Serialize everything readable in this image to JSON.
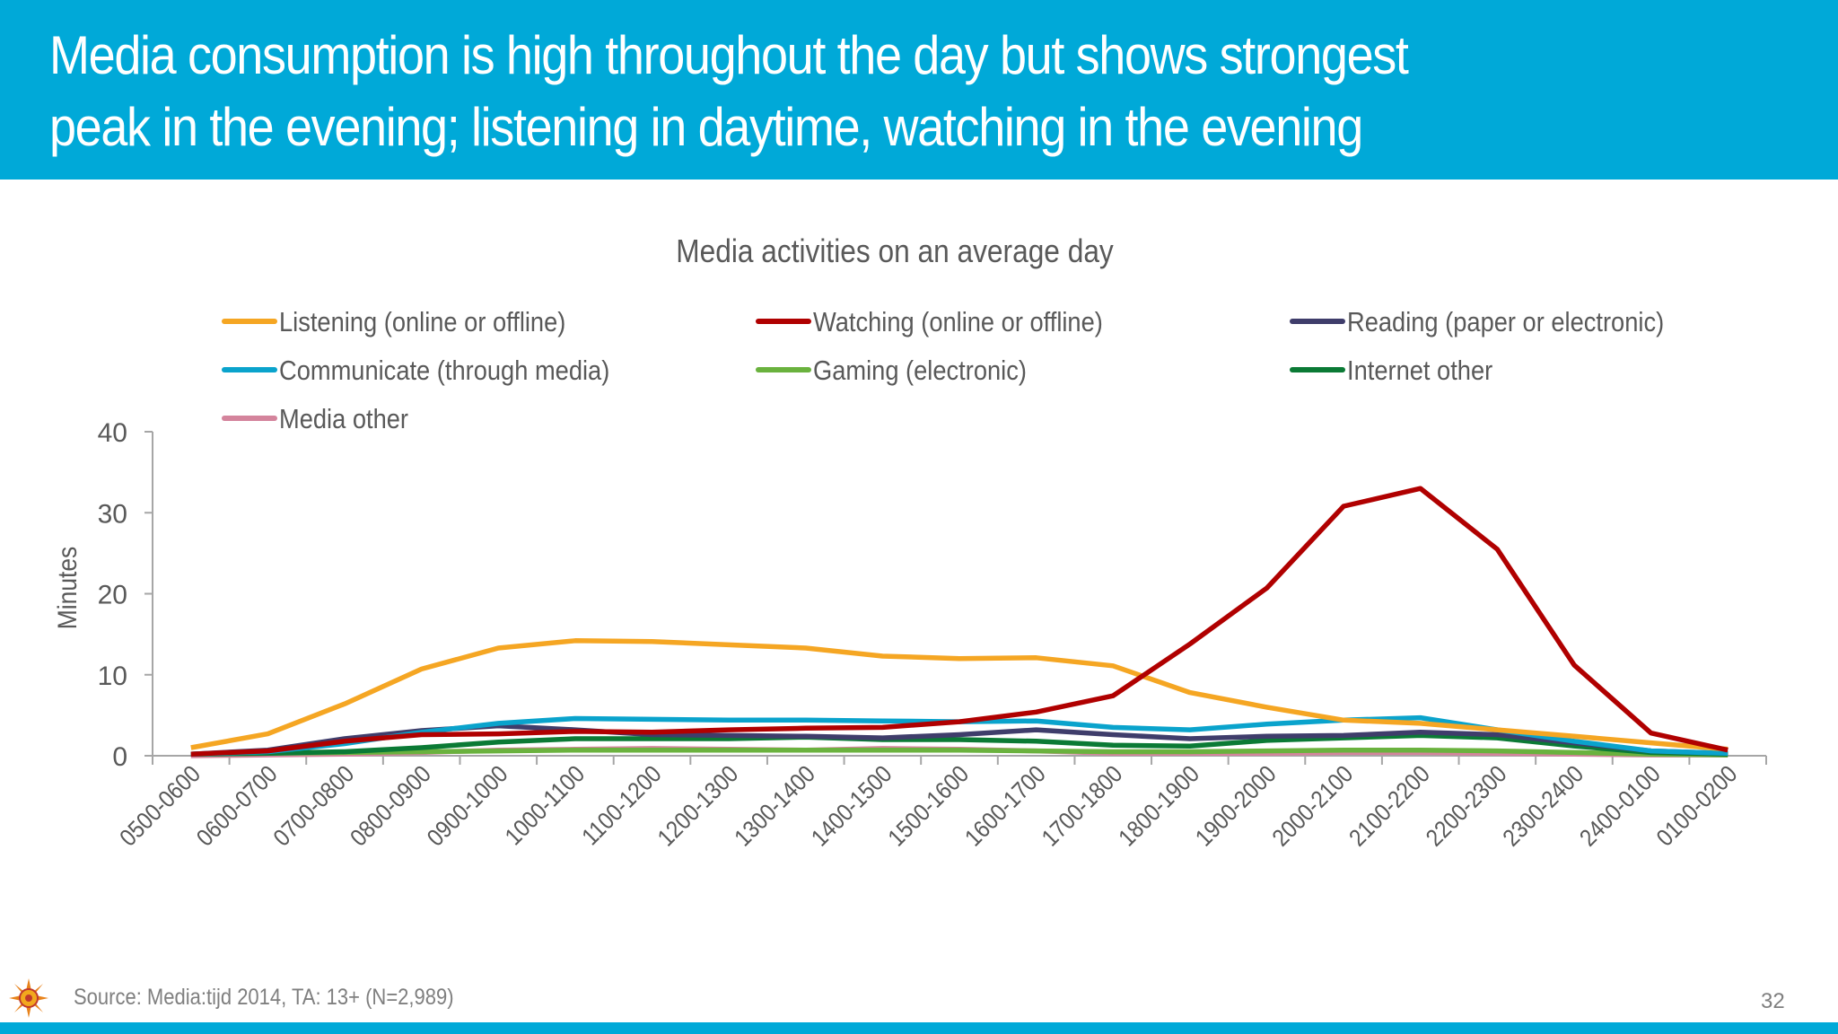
{
  "slide": {
    "title_line1": "Media consumption is high throughout the day but shows strongest",
    "title_line2": "peak in the evening; listening in daytime, watching in the evening",
    "source": "Source: Media:tijd 2014, TA: 13+ (N=2,989)",
    "page_number": "32"
  },
  "chart_data": {
    "type": "line",
    "title": "Media activities on an average day",
    "ylabel": "Minutes",
    "xlabel": "",
    "ylim": [
      0,
      40
    ],
    "yticks": [
      0,
      10,
      20,
      30,
      40
    ],
    "grid": false,
    "legend_position": "top",
    "categories": [
      "0500-0600",
      "0600-0700",
      "0700-0800",
      "0800-0900",
      "0900-1000",
      "1000-1100",
      "1100-1200",
      "1200-1300",
      "1300-1400",
      "1400-1500",
      "1500-1600",
      "1600-1700",
      "1700-1800",
      "1800-1900",
      "1900-2000",
      "2000-2100",
      "2100-2200",
      "2200-2300",
      "2300-2400",
      "2400-0100",
      "0100-0200"
    ],
    "series": [
      {
        "name": "Listening (online or offline)",
        "color": "#f5a623",
        "values": [
          1.0,
          2.7,
          6.4,
          10.7,
          13.3,
          14.2,
          14.1,
          13.7,
          13.3,
          12.3,
          12.0,
          12.1,
          11.1,
          7.8,
          6.0,
          4.4,
          4.0,
          3.2,
          2.4,
          1.6,
          0.8
        ]
      },
      {
        "name": "Watching (online or offline)",
        "color": "#b00000",
        "values": [
          0.2,
          0.6,
          1.8,
          2.6,
          2.7,
          3.0,
          2.9,
          3.2,
          3.4,
          3.5,
          4.2,
          5.4,
          7.4,
          13.8,
          20.7,
          30.8,
          33.0,
          25.5,
          11.2,
          2.8,
          0.7
        ]
      },
      {
        "name": "Reading (paper or electronic)",
        "color": "#3f3d6b",
        "values": [
          0.2,
          0.7,
          2.1,
          3.1,
          3.7,
          3.2,
          2.6,
          2.5,
          2.4,
          2.2,
          2.6,
          3.2,
          2.6,
          2.1,
          2.4,
          2.5,
          2.9,
          2.6,
          1.6,
          0.6,
          0.3
        ]
      },
      {
        "name": "Communicate (through media)",
        "color": "#0aa3cc",
        "values": [
          0.2,
          0.5,
          1.5,
          2.9,
          4.0,
          4.6,
          4.5,
          4.4,
          4.4,
          4.3,
          4.2,
          4.3,
          3.5,
          3.2,
          3.9,
          4.4,
          4.7,
          3.2,
          1.8,
          0.6,
          0.3
        ]
      },
      {
        "name": "Gaming (electronic)",
        "color": "#6ab23e",
        "values": [
          0.2,
          0.3,
          0.4,
          0.5,
          0.6,
          0.7,
          0.7,
          0.7,
          0.7,
          0.7,
          0.7,
          0.6,
          0.5,
          0.5,
          0.6,
          0.7,
          0.7,
          0.6,
          0.4,
          0.2,
          0.1
        ]
      },
      {
        "name": "Internet other",
        "color": "#0b7a35",
        "values": [
          0.2,
          0.3,
          0.5,
          1.0,
          1.7,
          2.1,
          2.1,
          2.1,
          2.3,
          2.0,
          2.0,
          1.8,
          1.3,
          1.2,
          1.9,
          2.2,
          2.5,
          2.2,
          1.2,
          0.4,
          0.2
        ]
      },
      {
        "name": "Media other",
        "color": "#d4849c",
        "values": [
          0.0,
          0.1,
          0.2,
          0.4,
          0.7,
          0.8,
          0.9,
          0.8,
          0.7,
          0.9,
          0.8,
          0.6,
          0.3,
          0.3,
          0.3,
          0.4,
          0.4,
          0.3,
          0.2,
          0.1,
          0.1
        ]
      }
    ]
  }
}
